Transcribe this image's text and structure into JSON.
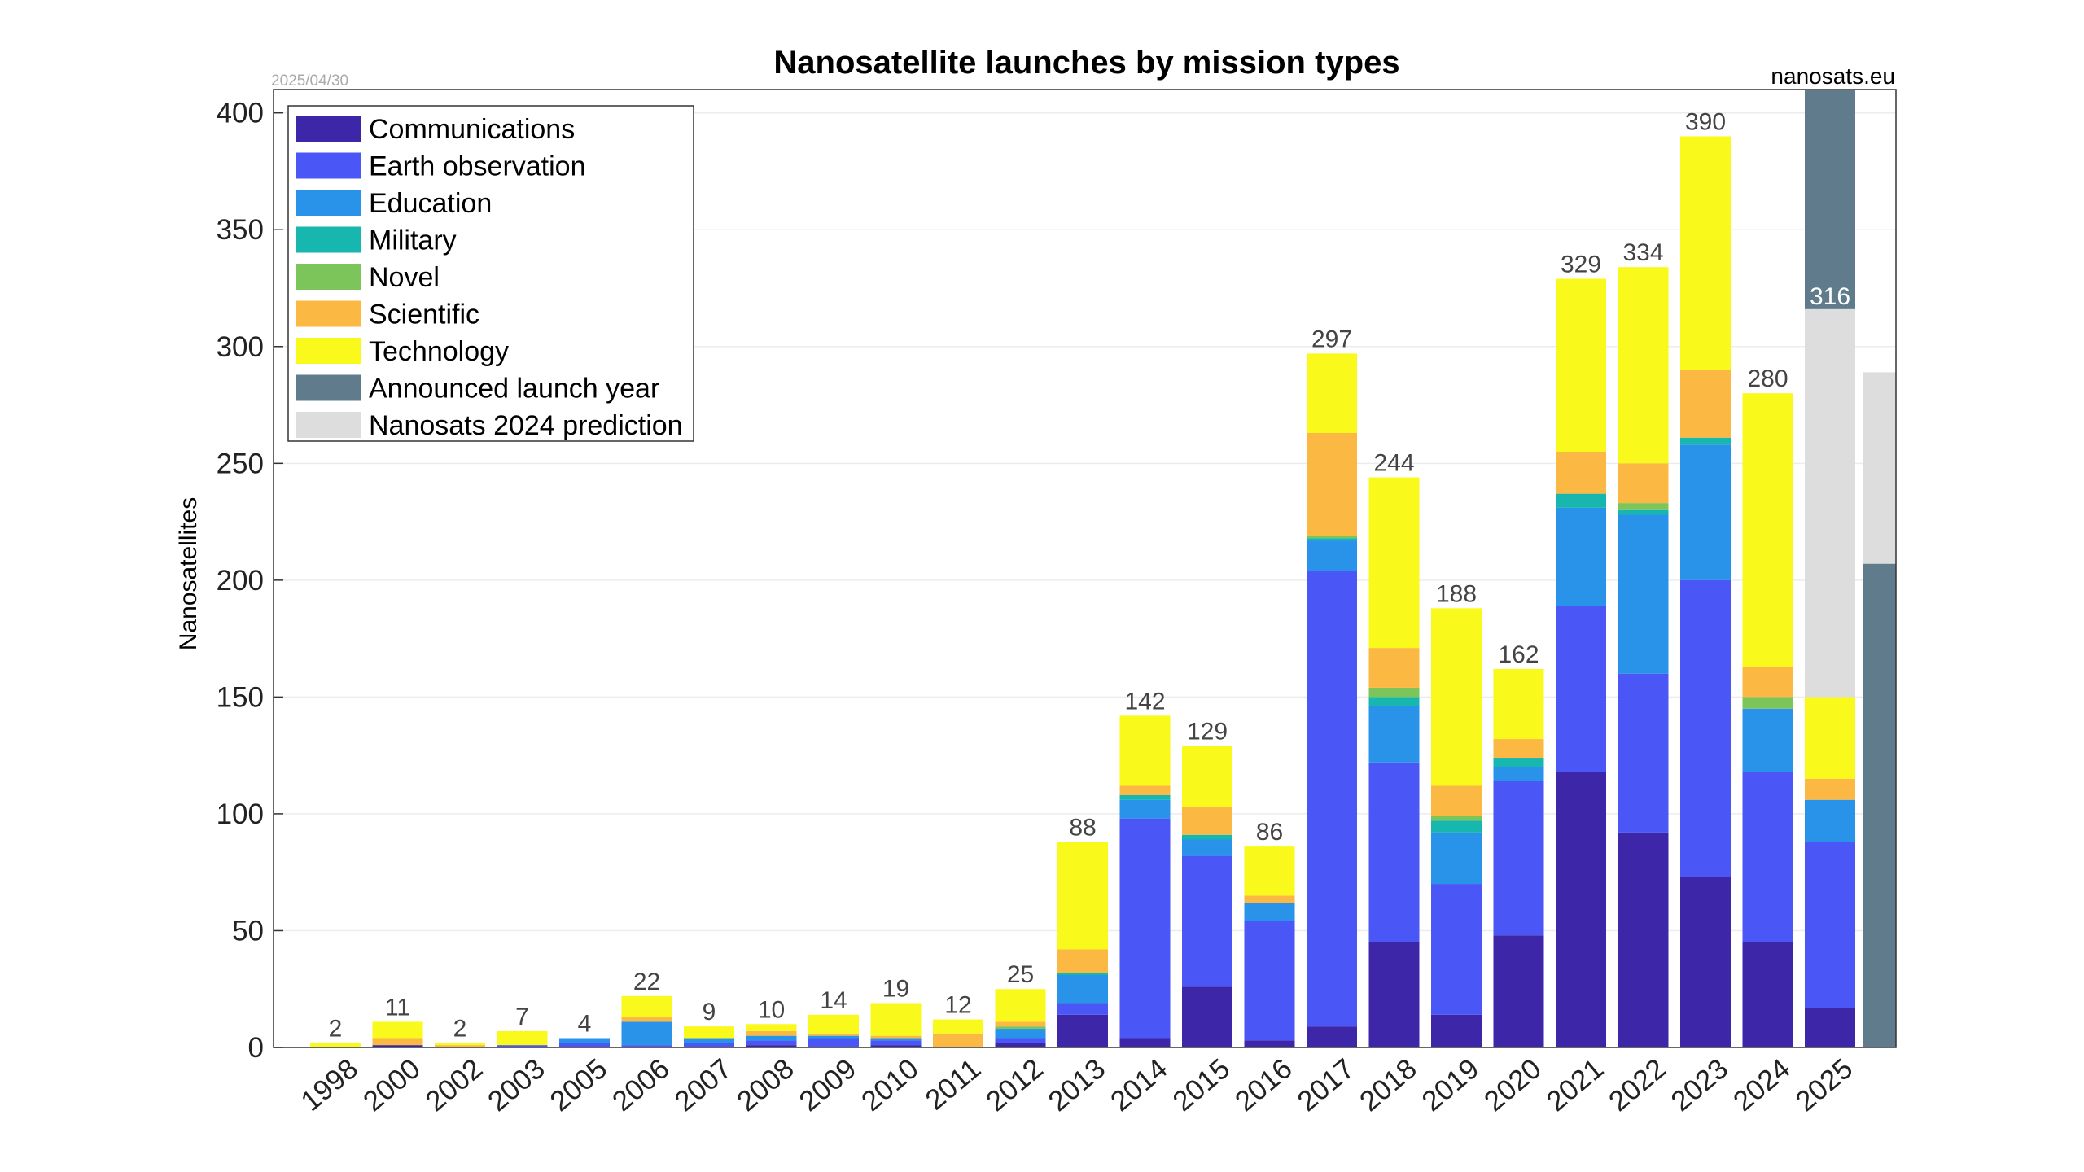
{
  "chart_data": {
    "type": "bar",
    "stacked": true,
    "title": "Nanosatellite launches by mission types",
    "date_label": "2025/04/30",
    "source_label": "nanosats.eu",
    "ylabel": "Nanosatellites",
    "xlabel": "",
    "ylim": [
      0,
      410
    ],
    "yticks": [
      0,
      50,
      100,
      150,
      200,
      250,
      300,
      350,
      400
    ],
    "grid": "horizontal",
    "legend_position": "top-left",
    "categories": [
      "1998",
      "2000",
      "2002",
      "2003",
      "2005",
      "2006",
      "2007",
      "2008",
      "2009",
      "2010",
      "2011",
      "2012",
      "2013",
      "2014",
      "2015",
      "2016",
      "2017",
      "2018",
      "2019",
      "2020",
      "2021",
      "2022",
      "2023",
      "2024",
      "2025"
    ],
    "totals": [
      "2",
      "11",
      "2",
      "7",
      "4",
      "22",
      "9",
      "10",
      "14",
      "19",
      "12",
      "25",
      "88",
      "142",
      "129",
      "86",
      "297",
      "244",
      "188",
      "162",
      "329",
      "334",
      "390",
      "280",
      ""
    ],
    "series": [
      {
        "name": "Communications",
        "color": "#3e26a8",
        "values": [
          0,
          1,
          0,
          0,
          0,
          0,
          0,
          1,
          0,
          1,
          0,
          2,
          14,
          4,
          26,
          3,
          9,
          45,
          14,
          48,
          118,
          92,
          73,
          45,
          17
        ]
      },
      {
        "name": "Earth observation",
        "color": "#4a56f5",
        "values": [
          0,
          0,
          0,
          1,
          2,
          1,
          2,
          2,
          4,
          2,
          0,
          2,
          5,
          94,
          56,
          51,
          195,
          77,
          56,
          66,
          71,
          68,
          127,
          73,
          71
        ]
      },
      {
        "name": "Education",
        "color": "#2893e8",
        "values": [
          0,
          0,
          0,
          0,
          2,
          10,
          2,
          2,
          1,
          1,
          0,
          4,
          12,
          8,
          7,
          8,
          13,
          24,
          22,
          6,
          42,
          68,
          58,
          27,
          18
        ]
      },
      {
        "name": "Military",
        "color": "#17b7b0",
        "values": [
          0,
          0,
          0,
          0,
          0,
          0,
          0,
          0,
          0,
          0,
          0,
          0,
          1,
          2,
          2,
          0,
          1,
          4,
          5,
          4,
          6,
          2,
          3,
          0,
          0
        ]
      },
      {
        "name": "Novel",
        "color": "#7cc55a",
        "values": [
          0,
          0,
          0,
          0,
          0,
          0,
          0,
          0,
          0,
          0,
          0,
          1,
          0,
          0,
          0,
          0,
          1,
          4,
          2,
          0,
          0,
          3,
          0,
          5,
          0
        ]
      },
      {
        "name": "Scientific",
        "color": "#fbb843",
        "values": [
          0,
          3,
          1,
          0,
          0,
          2,
          0,
          2,
          1,
          1,
          6,
          2,
          10,
          4,
          12,
          3,
          44,
          17,
          13,
          8,
          18,
          17,
          29,
          13,
          9
        ]
      },
      {
        "name": "Technology",
        "color": "#f9f91b",
        "values": [
          2,
          7,
          1,
          6,
          0,
          9,
          5,
          3,
          8,
          14,
          6,
          14,
          46,
          30,
          26,
          21,
          34,
          73,
          76,
          30,
          74,
          84,
          100,
          117,
          35
        ]
      }
    ],
    "prediction_2025": {
      "name": "Nanosats 2024 prediction",
      "color": "#dddddd",
      "stacked_top": 316,
      "label": "316"
    },
    "announced_2025": {
      "name": "Announced launch year",
      "color": "#5f7b8c",
      "stacked_top": 410
    },
    "extra_bar": {
      "prediction_top": 289,
      "announced_top": 207
    },
    "legend": [
      "Communications",
      "Earth observation",
      "Education",
      "Military",
      "Novel",
      "Scientific",
      "Technology",
      "Announced launch year",
      "Nanosats 2024 prediction"
    ],
    "legend_colors": [
      "#3e26a8",
      "#4a56f5",
      "#2893e8",
      "#17b7b0",
      "#7cc55a",
      "#fbb843",
      "#f9f91b",
      "#5f7b8c",
      "#dddddd"
    ]
  }
}
